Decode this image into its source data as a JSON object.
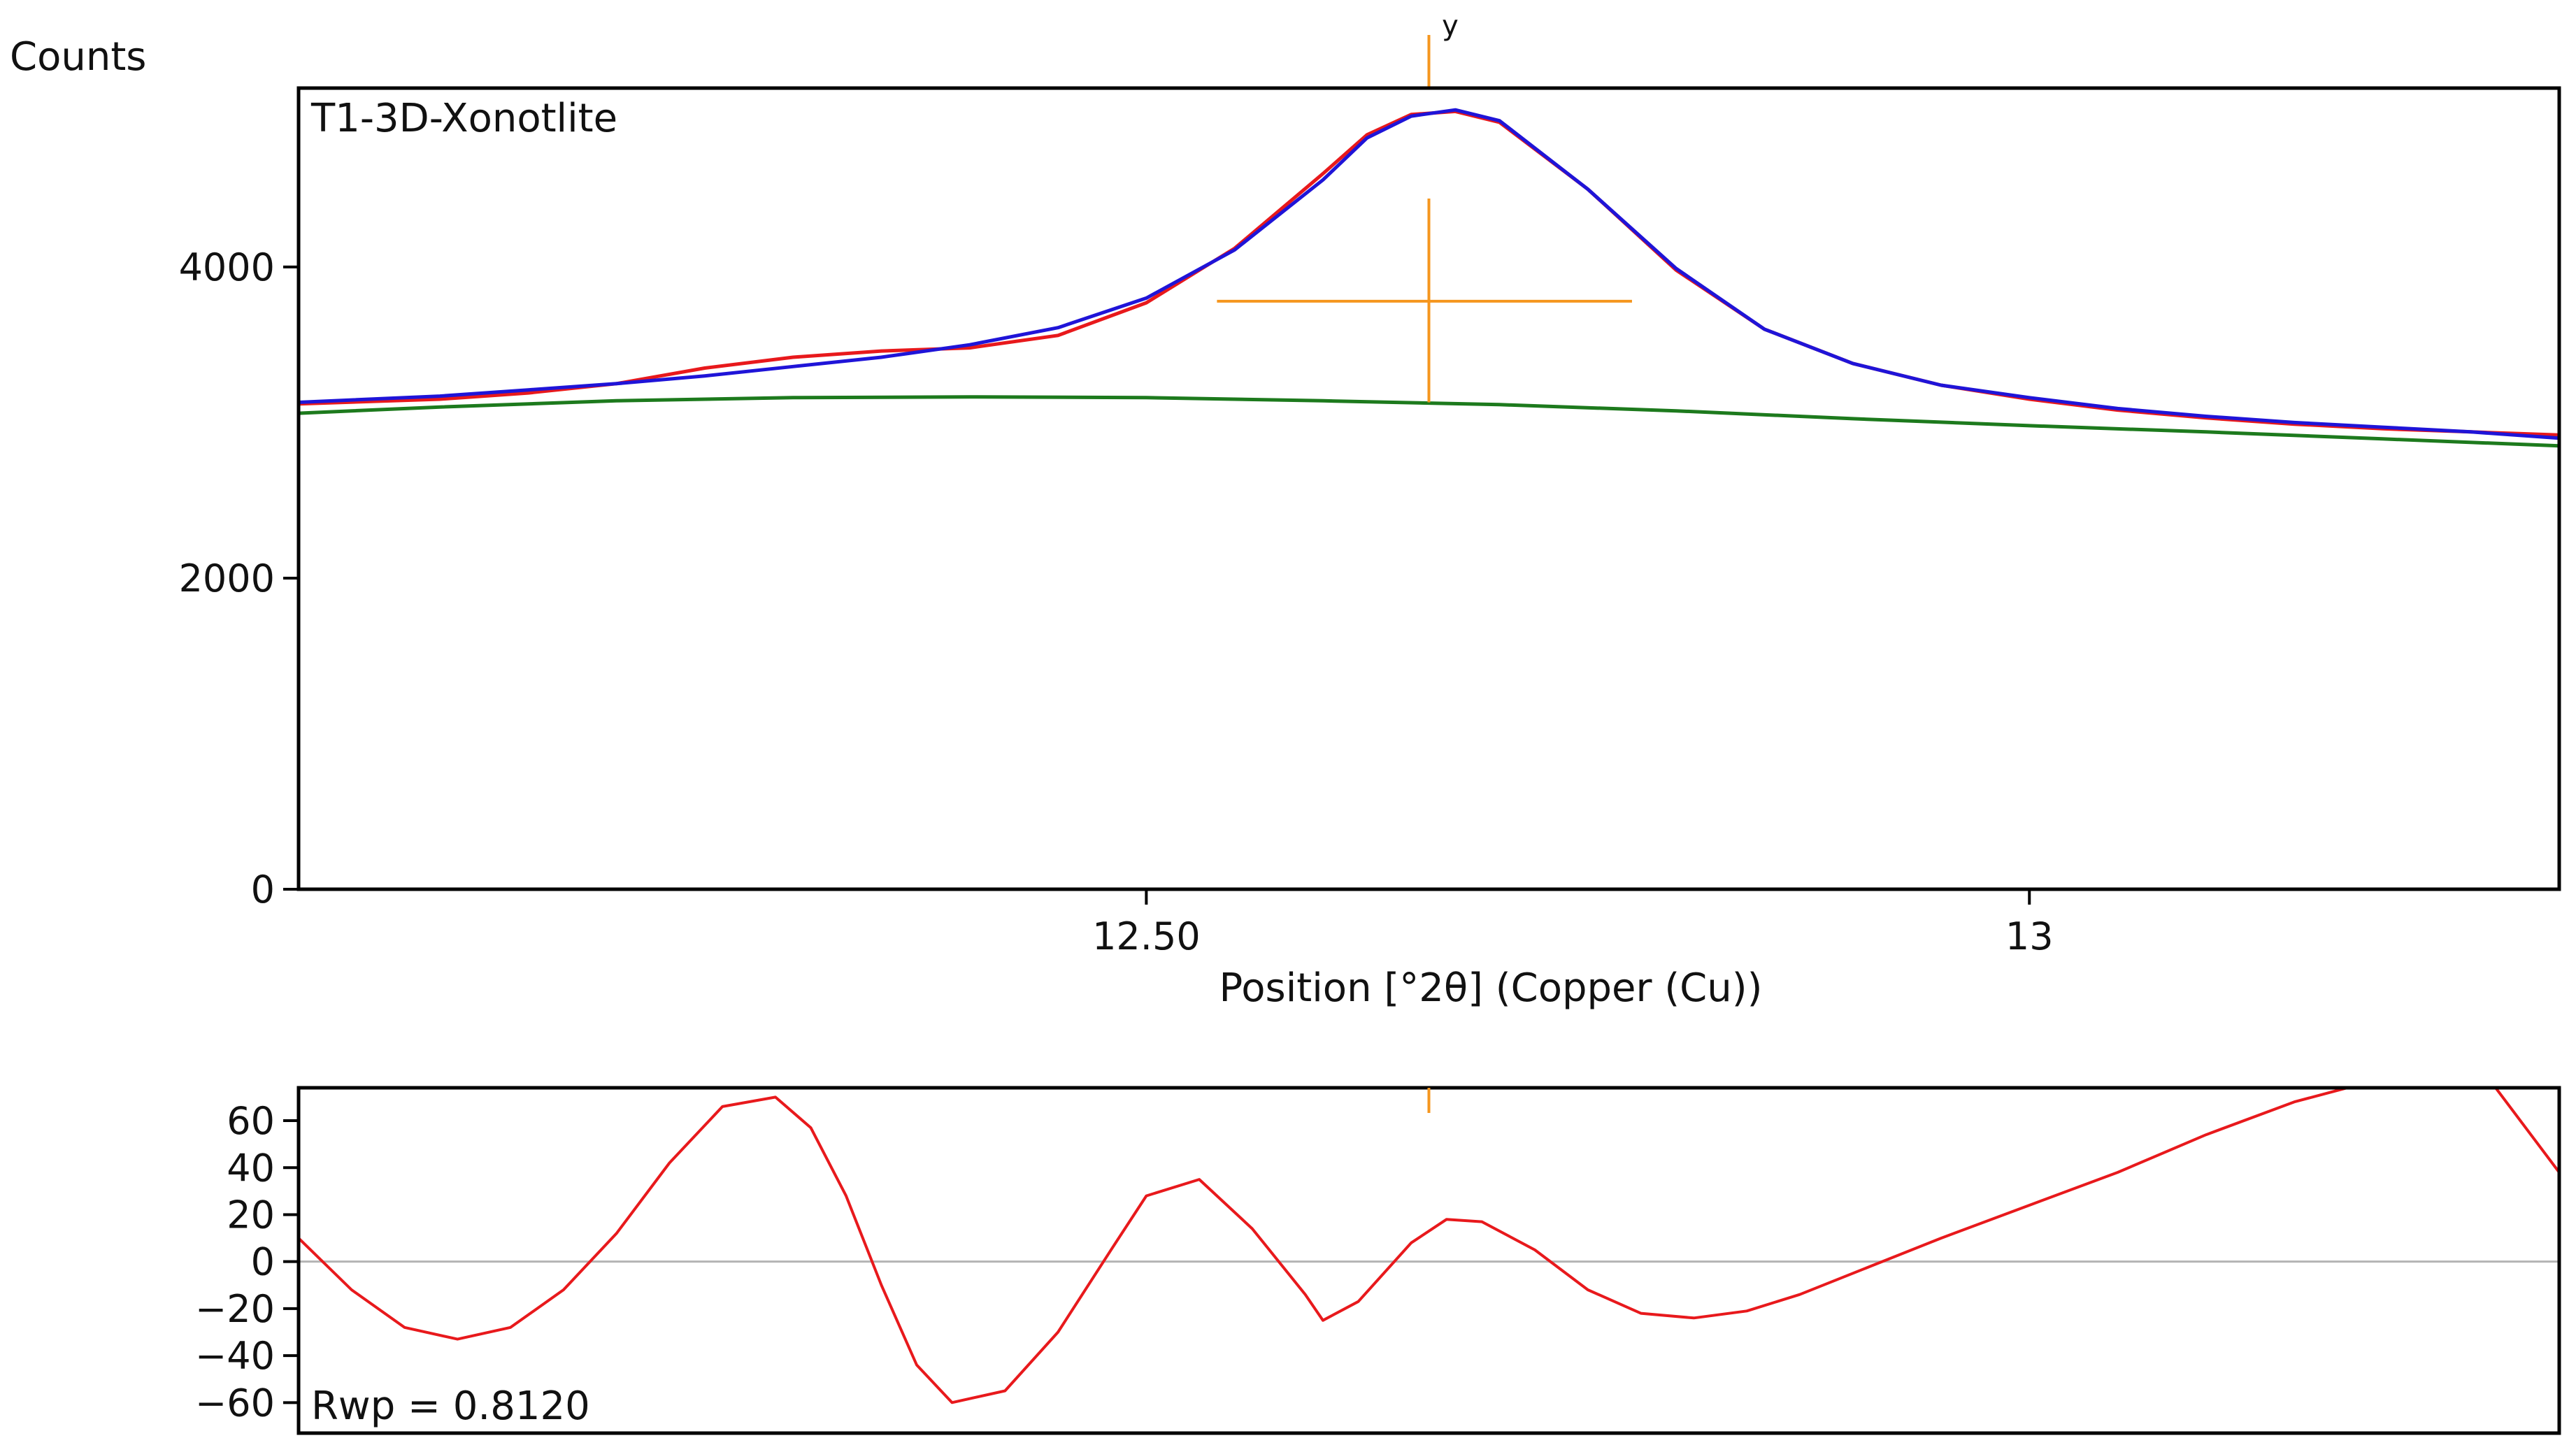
{
  "chart_data": [
    {
      "type": "line",
      "ylabel": "Counts",
      "xlabel": "Position [°2θ] (Copper (Cu))",
      "annotation": "T1-3D-Xonotlite",
      "peak_marker": "y",
      "xlim": [
        12.02,
        13.3
      ],
      "ylim": [
        0,
        5150
      ],
      "x_ticks": [
        {
          "value": 12.5,
          "label": "12.50"
        },
        {
          "value": 13.0,
          "label": "13"
        }
      ],
      "y_ticks": [
        {
          "value": 0,
          "label": "0"
        },
        {
          "value": 2000,
          "label": "2000"
        },
        {
          "value": 4000,
          "label": "4000"
        }
      ],
      "colors": {
        "observed": "#e8191c",
        "calculated": "#1f14d8",
        "background": "#1d7a1d",
        "marker": "#f5961e"
      },
      "series": [
        {
          "role": "observed",
          "x": [
            12.02,
            12.1,
            12.15,
            12.2,
            12.25,
            12.3,
            12.35,
            12.4,
            12.45,
            12.5,
            12.55,
            12.6,
            12.625,
            12.65,
            12.675,
            12.7,
            12.75,
            12.8,
            12.85,
            12.9,
            12.95,
            13.0,
            13.05,
            13.1,
            13.15,
            13.2,
            13.25,
            13.3
          ],
          "y": [
            3120,
            3150,
            3190,
            3250,
            3350,
            3420,
            3460,
            3480,
            3560,
            3770,
            4120,
            4600,
            4850,
            4980,
            5000,
            4930,
            4500,
            3980,
            3600,
            3380,
            3240,
            3150,
            3080,
            3030,
            2990,
            2960,
            2940,
            2920
          ]
        },
        {
          "role": "calculated",
          "x": [
            12.02,
            12.1,
            12.15,
            12.2,
            12.25,
            12.3,
            12.35,
            12.4,
            12.45,
            12.5,
            12.55,
            12.6,
            12.625,
            12.65,
            12.675,
            12.7,
            12.75,
            12.8,
            12.85,
            12.9,
            12.95,
            13.0,
            13.05,
            13.1,
            13.15,
            13.2,
            13.25,
            13.3
          ],
          "y": [
            3130,
            3170,
            3210,
            3250,
            3300,
            3360,
            3420,
            3500,
            3610,
            3800,
            4110,
            4560,
            4830,
            4970,
            5010,
            4940,
            4500,
            3990,
            3600,
            3380,
            3240,
            3160,
            3090,
            3040,
            3000,
            2970,
            2940,
            2900
          ]
        },
        {
          "role": "background",
          "x": [
            12.02,
            12.1,
            12.2,
            12.3,
            12.4,
            12.5,
            12.6,
            12.7,
            12.8,
            12.9,
            13.0,
            13.1,
            13.2,
            13.3
          ],
          "y": [
            3060,
            3100,
            3140,
            3160,
            3165,
            3160,
            3140,
            3115,
            3075,
            3025,
            2980,
            2940,
            2895,
            2850
          ]
        }
      ],
      "peak": {
        "x": 12.66,
        "y": 3780,
        "err_x_low": 12.54,
        "err_x_high": 12.775,
        "err_y_low": 3130,
        "err_y_high": 4440
      }
    },
    {
      "type": "line",
      "annotation": "Rwp = 0.8120",
      "xlim": [
        12.02,
        13.3
      ],
      "ylim": [
        -73,
        74
      ],
      "y_ticks": [
        {
          "value": 60,
          "label": "60"
        },
        {
          "value": 40,
          "label": "40"
        },
        {
          "value": 20,
          "label": "20"
        },
        {
          "value": 0,
          "label": "0"
        },
        {
          "value": -20,
          "label": "−20"
        },
        {
          "value": -40,
          "label": "−40"
        },
        {
          "value": -60,
          "label": "−60"
        }
      ],
      "zero_line": true,
      "colors": {
        "difference": "#e8191c",
        "zero_line": "#b4b4b4",
        "marker": "#f5961e"
      },
      "series": [
        {
          "role": "difference",
          "x": [
            12.02,
            12.05,
            12.08,
            12.11,
            12.14,
            12.17,
            12.2,
            12.23,
            12.26,
            12.29,
            12.31,
            12.33,
            12.35,
            12.37,
            12.39,
            12.42,
            12.45,
            12.48,
            12.5,
            12.53,
            12.56,
            12.59,
            12.6,
            12.62,
            12.65,
            12.67,
            12.69,
            12.72,
            12.75,
            12.78,
            12.81,
            12.84,
            12.87,
            12.91,
            12.95,
            13.0,
            13.05,
            13.1,
            13.15,
            13.2,
            13.25,
            13.3
          ],
          "y": [
            10,
            -12,
            -28,
            -33,
            -28,
            -12,
            12,
            42,
            66,
            70,
            57,
            28,
            -10,
            -44,
            -60,
            -55,
            -30,
            5,
            28,
            35,
            14,
            -14,
            -25,
            -17,
            8,
            18,
            17,
            5,
            -12,
            -22,
            -24,
            -21,
            -14,
            -2,
            10,
            24,
            38,
            54,
            68,
            78,
            88,
            38
          ]
        }
      ],
      "peak_x": 12.66
    }
  ]
}
